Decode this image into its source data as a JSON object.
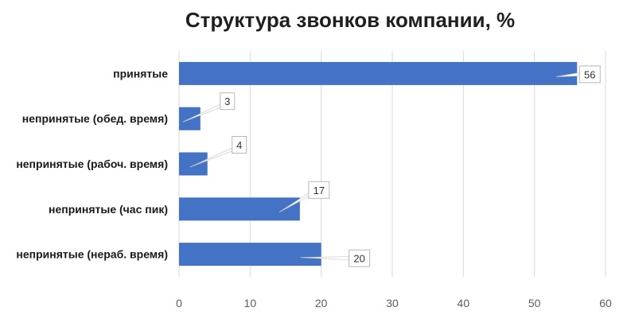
{
  "chart_data": {
    "type": "bar",
    "orientation": "horizontal",
    "title": "Структура звонков компании, %",
    "categories": [
      "принятые",
      "непринятые (обед. время)",
      "непринятые (рабоч. время)",
      "непринятые (час пик)",
      "непринятые (нераб. время)"
    ],
    "values": [
      56,
      3,
      4,
      17,
      20
    ],
    "xlim": [
      0,
      60
    ],
    "xticks": [
      0,
      10,
      20,
      30,
      40,
      50,
      60
    ],
    "grid": true,
    "legend": "none",
    "data_labels": "callouts",
    "colors": {
      "bar": "#4472c4",
      "grid": "#d9d9d9"
    }
  }
}
